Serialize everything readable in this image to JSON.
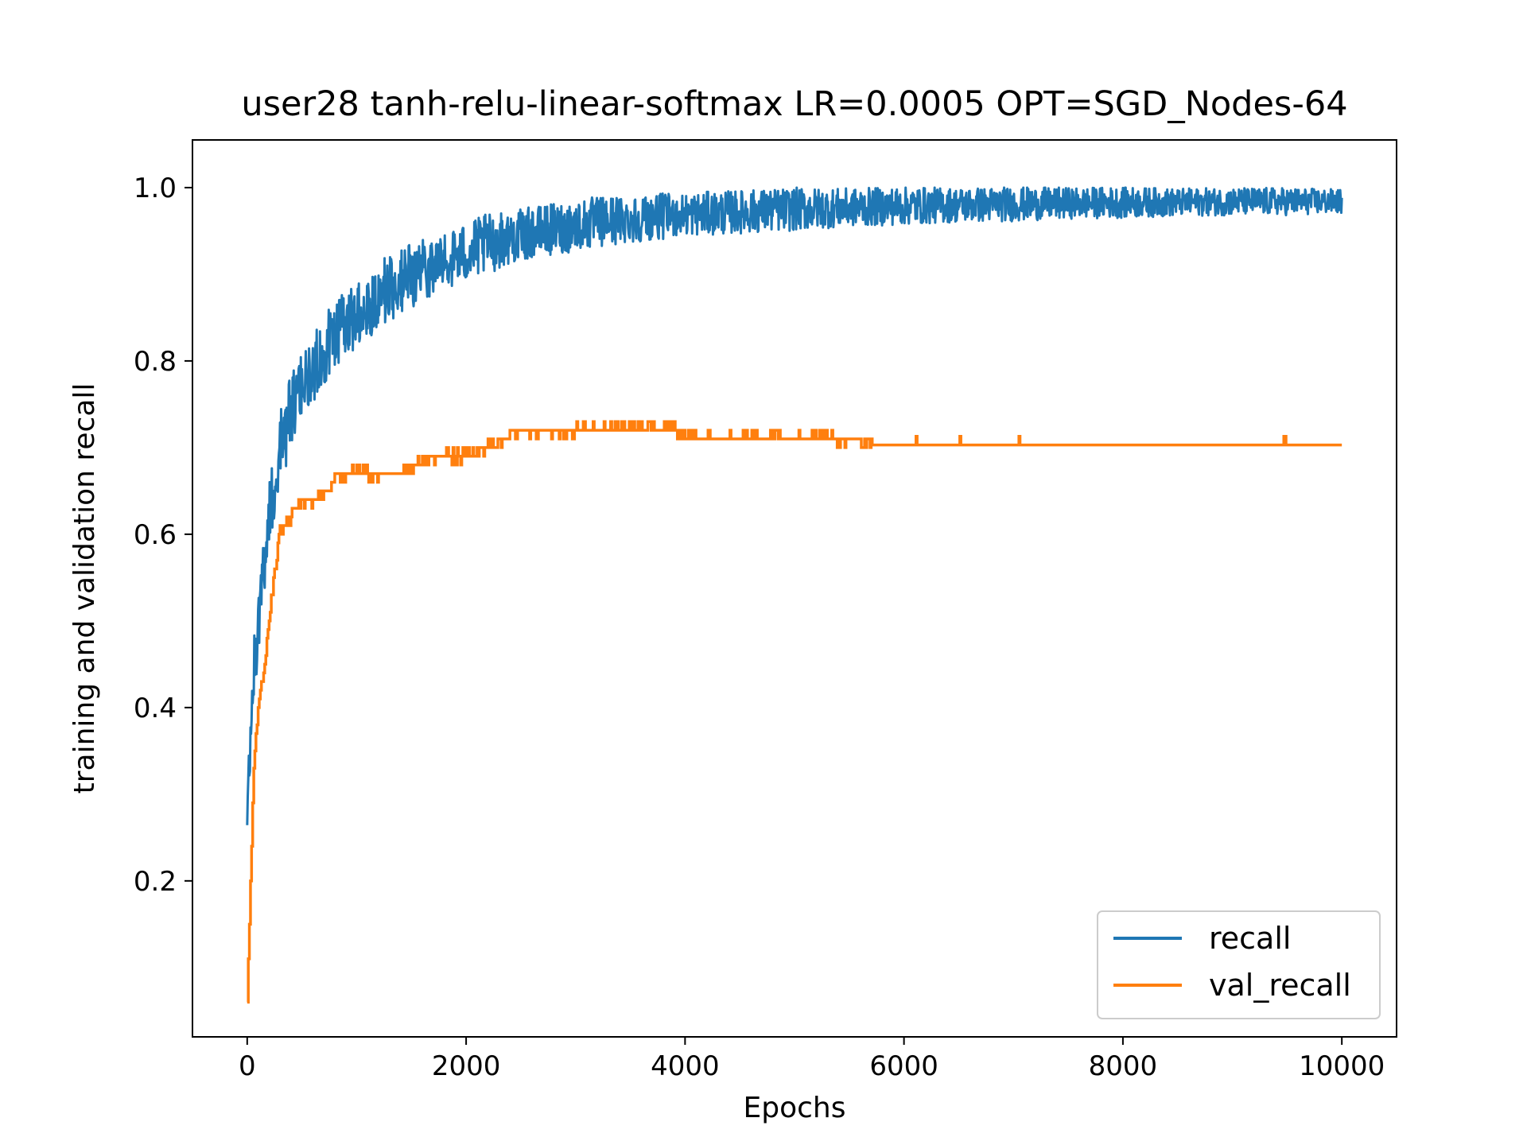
{
  "chart_data": {
    "type": "line",
    "title": "user28 tanh-relu-linear-softmax LR=0.0005 OPT=SGD_Nodes-64",
    "xlabel": "Epochs",
    "ylabel": "training and validation recall",
    "xlim": [
      -500,
      10500
    ],
    "ylim": [
      0.02,
      1.055
    ],
    "xticks": [
      0,
      2000,
      4000,
      6000,
      8000,
      10000
    ],
    "xtick_labels": [
      "0",
      "2000",
      "4000",
      "6000",
      "8000",
      "10000"
    ],
    "yticks": [
      0.2,
      0.4,
      0.6,
      0.8,
      1.0
    ],
    "ytick_labels": [
      "0.2",
      "0.4",
      "0.6",
      "0.8",
      "1.0"
    ],
    "grid": false,
    "legend_position": "lower-right",
    "series": [
      {
        "name": "recall",
        "color": "#1f77b4",
        "x": [
          0,
          20,
          50,
          100,
          150,
          200,
          250,
          300,
          400,
          500,
          600,
          700,
          800,
          1000,
          1200,
          1400,
          1600,
          1800,
          2000,
          2200,
          2400,
          2600,
          2800,
          3000,
          3200,
          3500,
          4000,
          4500,
          5000,
          5500,
          6000,
          6500,
          7000,
          7500,
          8000,
          8500,
          9000,
          9500,
          10000
        ],
        "y": [
          0.28,
          0.33,
          0.42,
          0.5,
          0.56,
          0.62,
          0.66,
          0.7,
          0.74,
          0.77,
          0.79,
          0.81,
          0.83,
          0.855,
          0.875,
          0.89,
          0.905,
          0.915,
          0.925,
          0.935,
          0.942,
          0.948,
          0.952,
          0.956,
          0.96,
          0.964,
          0.969,
          0.972,
          0.975,
          0.977,
          0.979,
          0.98,
          0.981,
          0.982,
          0.983,
          0.983,
          0.984,
          0.984,
          0.984
        ],
        "noise": [
          0.02,
          0.03,
          0.04,
          0.04,
          0.04,
          0.04,
          0.045,
          0.045,
          0.045,
          0.04,
          0.04,
          0.04,
          0.04,
          0.04,
          0.04,
          0.04,
          0.035,
          0.035,
          0.035,
          0.035,
          0.03,
          0.03,
          0.03,
          0.03,
          0.03,
          0.028,
          0.025,
          0.025,
          0.025,
          0.022,
          0.022,
          0.02,
          0.02,
          0.018,
          0.018,
          0.016,
          0.016,
          0.016,
          0.014
        ]
      },
      {
        "name": "val_recall",
        "color": "#ff7f0e",
        "steps": [
          [
            0,
            0.06
          ],
          [
            30,
            0.2
          ],
          [
            60,
            0.33
          ],
          [
            100,
            0.4
          ],
          [
            160,
            0.45
          ],
          [
            200,
            0.5
          ],
          [
            250,
            0.56
          ],
          [
            300,
            0.6
          ],
          [
            400,
            0.62
          ],
          [
            500,
            0.64
          ],
          [
            600,
            0.635
          ],
          [
            700,
            0.645
          ],
          [
            800,
            0.66
          ],
          [
            900,
            0.665
          ],
          [
            1000,
            0.675
          ],
          [
            1200,
            0.665
          ],
          [
            1400,
            0.67
          ],
          [
            1600,
            0.685
          ],
          [
            1800,
            0.69
          ],
          [
            2000,
            0.69
          ],
          [
            2200,
            0.7
          ],
          [
            2400,
            0.715
          ],
          [
            2600,
            0.72
          ],
          [
            2800,
            0.715
          ],
          [
            3000,
            0.72
          ],
          [
            3500,
            0.725
          ],
          [
            3900,
            0.72
          ],
          [
            4000,
            0.713
          ],
          [
            5000,
            0.71
          ],
          [
            5200,
            0.713
          ],
          [
            5700,
            0.703
          ],
          [
            6000,
            0.703
          ],
          [
            7000,
            0.703
          ],
          [
            8000,
            0.703
          ],
          [
            9000,
            0.703
          ],
          [
            10000,
            0.703
          ]
        ],
        "noise_amp": 0.005
      }
    ]
  }
}
